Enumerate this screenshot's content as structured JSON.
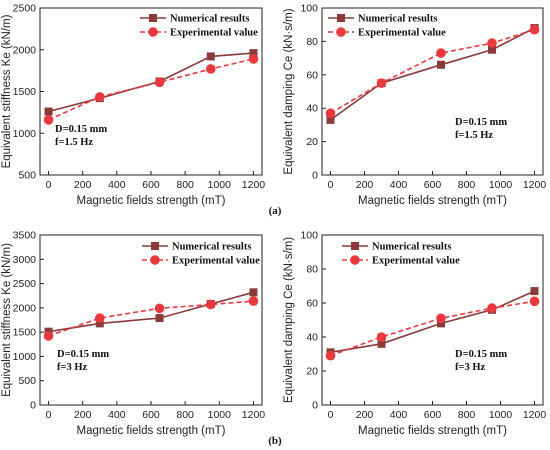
{
  "panel_labels": [
    "(a)",
    "(b)"
  ],
  "colors": {
    "numerical": "#8b3a3a",
    "experimental": "#e8393f",
    "axis": "#222222"
  },
  "chart_data": [
    {
      "type": "line",
      "xlabel": "Magnetic fields strength (mT)",
      "ylabel": "Equivalent stiffness Ke (kN/m)",
      "xlim": [
        -50,
        1250
      ],
      "ylim": [
        500,
        2500
      ],
      "xticks": [
        0,
        200,
        400,
        600,
        800,
        1000,
        1200
      ],
      "yticks": [
        500,
        1000,
        1500,
        2000,
        2500
      ],
      "annotation": [
        "D=0.15 mm",
        "f=1.5 Hz"
      ],
      "legend": "top-right",
      "series": [
        {
          "name": "Numerical results",
          "x": [
            0,
            300,
            650,
            950,
            1200
          ],
          "y": [
            1260,
            1420,
            1620,
            1920,
            1960
          ]
        },
        {
          "name": "Experimental value",
          "x": [
            0,
            300,
            650,
            950,
            1200
          ],
          "y": [
            1160,
            1435,
            1610,
            1770,
            1890
          ]
        }
      ]
    },
    {
      "type": "line",
      "xlabel": "Magnetic fields strength (mT)",
      "ylabel": "Equivalent damping Ce (kN·s/m)",
      "xlim": [
        -50,
        1250
      ],
      "ylim": [
        0,
        100
      ],
      "xticks": [
        0,
        200,
        400,
        600,
        800,
        1000,
        1200
      ],
      "yticks": [
        0,
        20,
        40,
        60,
        80,
        100
      ],
      "annotation": [
        "D=0.15 mm",
        "f=1.5 Hz"
      ],
      "legend": "top-left",
      "series": [
        {
          "name": "Numerical results",
          "x": [
            0,
            300,
            650,
            950,
            1200
          ],
          "y": [
            33,
            55,
            66,
            75,
            88
          ]
        },
        {
          "name": "Experimental value",
          "x": [
            0,
            300,
            650,
            950,
            1200
          ],
          "y": [
            37,
            55,
            73,
            79,
            87
          ]
        }
      ]
    },
    {
      "type": "line",
      "xlabel": "Magnetic fields strength (mT)",
      "ylabel": "Equivalent stiffness Ke (kN/m)",
      "xlim": [
        -50,
        1250
      ],
      "ylim": [
        0,
        3500
      ],
      "xticks": [
        0,
        200,
        400,
        600,
        800,
        1000,
        1200
      ],
      "yticks": [
        0,
        500,
        1000,
        1500,
        2000,
        2500,
        3000,
        3500
      ],
      "annotation": [
        "D=0.15 mm",
        "f=3 Hz"
      ],
      "legend": "top-right",
      "series": [
        {
          "name": "Numerical results",
          "x": [
            0,
            300,
            650,
            950,
            1200
          ],
          "y": [
            1510,
            1680,
            1790,
            2080,
            2320
          ]
        },
        {
          "name": "Experimental value",
          "x": [
            0,
            300,
            650,
            950,
            1200
          ],
          "y": [
            1420,
            1790,
            1990,
            2070,
            2140
          ]
        }
      ]
    },
    {
      "type": "line",
      "xlabel": "Magnetic fields strength (mT)",
      "ylabel": "Equivalent damping Ce (kN·s/m)",
      "xlim": [
        -50,
        1250
      ],
      "ylim": [
        0,
        100
      ],
      "xticks": [
        0,
        200,
        400,
        600,
        800,
        1000,
        1200
      ],
      "yticks": [
        0,
        20,
        40,
        60,
        80,
        100
      ],
      "annotation": [
        "D=0.15 mm",
        "f=3 Hz"
      ],
      "legend": "top-left",
      "series": [
        {
          "name": "Numerical results",
          "x": [
            0,
            300,
            650,
            950,
            1200
          ],
          "y": [
            31,
            36,
            48,
            56,
            67
          ]
        },
        {
          "name": "Experimental value",
          "x": [
            0,
            300,
            650,
            950,
            1200
          ],
          "y": [
            29,
            40,
            51,
            57,
            61
          ]
        }
      ]
    }
  ]
}
